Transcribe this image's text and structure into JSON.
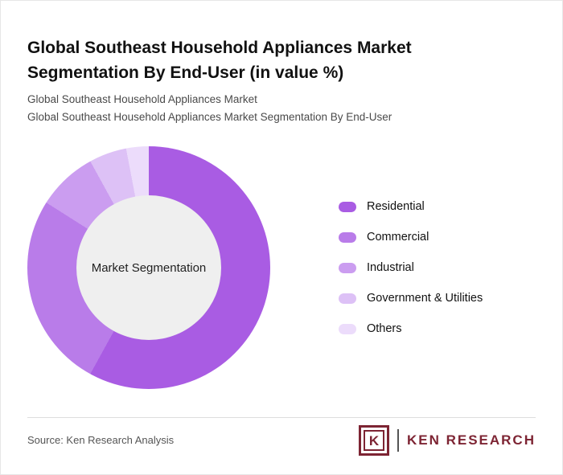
{
  "header": {
    "title": "Global Southeast Household Appliances Market Segmentation By End-User (in value %)",
    "subtitle_line1": "Global Southeast Household Appliances Market",
    "subtitle_line2": "Global Southeast Household Appliances Market Segmentation By End-User"
  },
  "chart_data": {
    "type": "pie",
    "subtype": "donut",
    "title": "Global Southeast Household Appliances Market Segmentation By End-User (in value %)",
    "center_label": "Market Segmentation",
    "categories": [
      "Residential",
      "Commercial",
      "Industrial",
      "Government & Utilities",
      "Others"
    ],
    "values": [
      58,
      26,
      8,
      5,
      3
    ],
    "colors": [
      "#a95ce3",
      "#b97ce9",
      "#cb9df0",
      "#ddc1f6",
      "#ecdcfb"
    ],
    "hole_color": "#efefef",
    "legend_position": "right",
    "start_angle_deg": 0,
    "direction": "clockwise"
  },
  "footer": {
    "source_text": "Source: Ken Research Analysis",
    "logo_letter": "K",
    "logo_text": "KEN RESEARCH",
    "logo_color": "#7d2433"
  }
}
